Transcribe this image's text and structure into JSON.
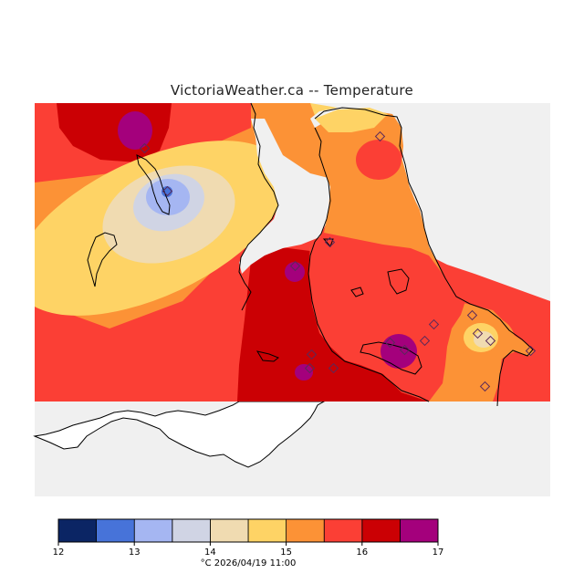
{
  "map": {
    "title": "VictoriaWeather.ca -- Temperature",
    "variable": "Temperature",
    "units": "°C",
    "timestamp": "2026/04/19 11:00",
    "footer": "°C  2026/04/19 11:00"
  },
  "legend": {
    "ticks": [
      "12",
      "13",
      "14",
      "15",
      "16",
      "17"
    ],
    "bins": [
      {
        "range": "12-12.5",
        "color": "#0b2564"
      },
      {
        "range": "12.5-13",
        "color": "#4773d9"
      },
      {
        "range": "13-13.5",
        "color": "#a5b6f2"
      },
      {
        "range": "13.5-14",
        "color": "#d0d4e4"
      },
      {
        "range": "14-14.5",
        "color": "#f0dbb1"
      },
      {
        "range": "14.5-15",
        "color": "#fed365"
      },
      {
        "range": "15-15.5",
        "color": "#fc9236"
      },
      {
        "range": "15.5-16",
        "color": "#fb3f35"
      },
      {
        "range": "16-16.5",
        "color": "#cb0004"
      },
      {
        "range": "16.5-17",
        "color": "#a4007c"
      }
    ]
  },
  "colors": {
    "land": "#ffffff",
    "no_data": "#f0f0f0",
    "coastline": "#000000"
  }
}
